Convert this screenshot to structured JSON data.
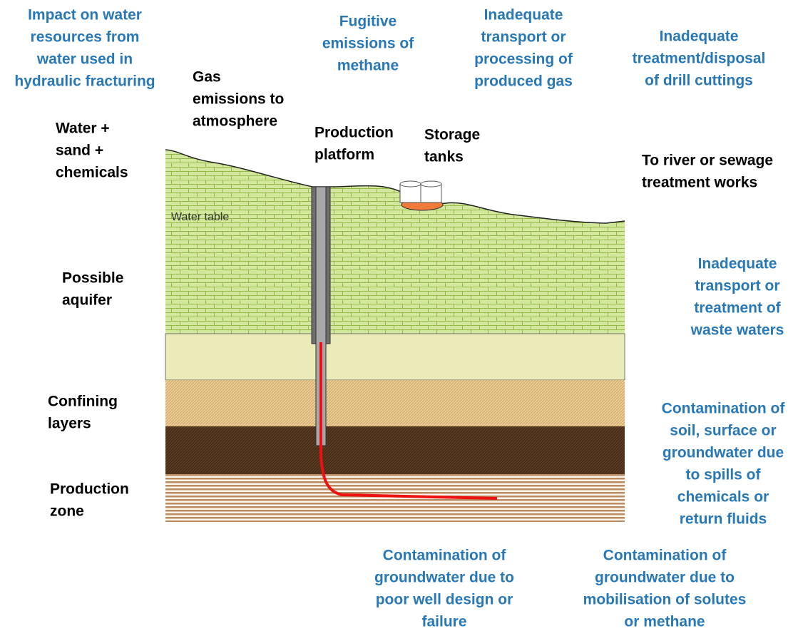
{
  "impacts": [
    {
      "lines": [
        "Impact on water",
        "resources from",
        "water used in",
        "hydraulic fracturing"
      ]
    },
    {
      "lines": [
        "Fugitive",
        "emissions of",
        "methane"
      ]
    },
    {
      "lines": [
        "Inadequate",
        "transport or",
        "processing of",
        "produced gas"
      ]
    },
    {
      "lines": [
        "Inadequate",
        "treatment/disposal",
        "of drill cuttings"
      ]
    },
    {
      "lines": [
        "Inadequate",
        "transport or",
        "treatment of",
        "waste waters"
      ]
    },
    {
      "lines": [
        "Contamination of",
        "soil, surface or",
        "groundwater due",
        "to spills of",
        "chemicals or",
        "return fluids"
      ]
    },
    {
      "lines": [
        "Contamination of",
        "groundwater due to",
        "poor well design or",
        "failure"
      ]
    },
    {
      "lines": [
        "Contamination of",
        "groundwater due to",
        "mobilisation of solutes",
        "or methane"
      ]
    }
  ],
  "labels": [
    {
      "lines": [
        "Gas",
        "emissions to",
        "atmosphere"
      ]
    },
    {
      "lines": [
        "Water +",
        "sand +",
        "chemicals"
      ]
    },
    {
      "lines": [
        "Production",
        "platform"
      ]
    },
    {
      "lines": [
        "Storage",
        "tanks"
      ]
    },
    {
      "lines": [
        "To river or sewage",
        "treatment works"
      ]
    },
    {
      "lines": [
        "Possible",
        "aquifer"
      ]
    },
    {
      "lines": [
        "Confining",
        "layers"
      ]
    },
    {
      "lines": [
        "Production",
        "zone"
      ]
    }
  ],
  "water_table": "Water table"
}
